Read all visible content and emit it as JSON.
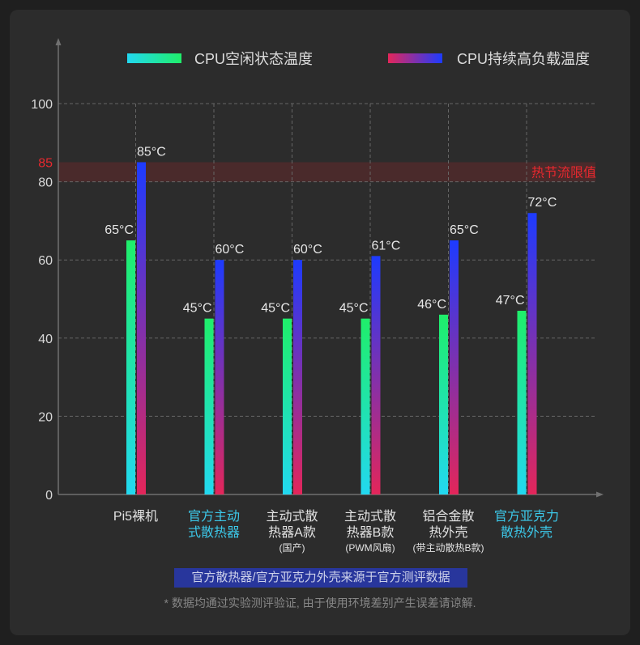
{
  "colors": {
    "page_bg": "#1f1f1f",
    "card_bg": "#2c2c2c",
    "idle_top": "#1fee6a",
    "idle_bottom": "#22d8f0",
    "load_top": "#1d3bff",
    "load_bottom": "#e3265a",
    "highlight_text": "#3cc9ea",
    "threshold_red": "#e8282e",
    "threshold_band": "#4a2a2b",
    "source_note_bg": "#28369c"
  },
  "chart_data": {
    "type": "bar",
    "categories": [
      [
        "Pi5裸机"
      ],
      [
        "官方主动",
        "式散热器"
      ],
      [
        "主动式散",
        "热器A款"
      ],
      [
        "主动式散",
        "热器B款"
      ],
      [
        "铝合金散",
        "热外壳"
      ],
      [
        "官方亚克力",
        "散热外壳"
      ]
    ],
    "category_notes": [
      "",
      "",
      "(国产)",
      "(PWM风扇)",
      "(带主动散热B款)",
      ""
    ],
    "highlighted_categories": [
      false,
      true,
      false,
      false,
      false,
      true
    ],
    "series": [
      {
        "name": "CPU空闲状态温度",
        "values": [
          65,
          45,
          45,
          45,
          46,
          47
        ]
      },
      {
        "name": "CPU持续高负载温度",
        "values": [
          85,
          60,
          60,
          61,
          65,
          72
        ]
      }
    ],
    "unit": "°C",
    "ylim": [
      0,
      100
    ],
    "y_ticks": [
      0,
      20,
      40,
      60,
      80,
      100
    ],
    "grid": true,
    "legend_position": "top",
    "threshold": {
      "label": "热节流限值",
      "value": 85,
      "band": [
        80,
        85
      ]
    }
  },
  "footer": {
    "source_note": "官方散热器/官方亚克力外壳来源于官方测评数据",
    "disclaimer": "* 数据均通过实验测评验证, 由于使用环境差别产生误差请谅解."
  }
}
